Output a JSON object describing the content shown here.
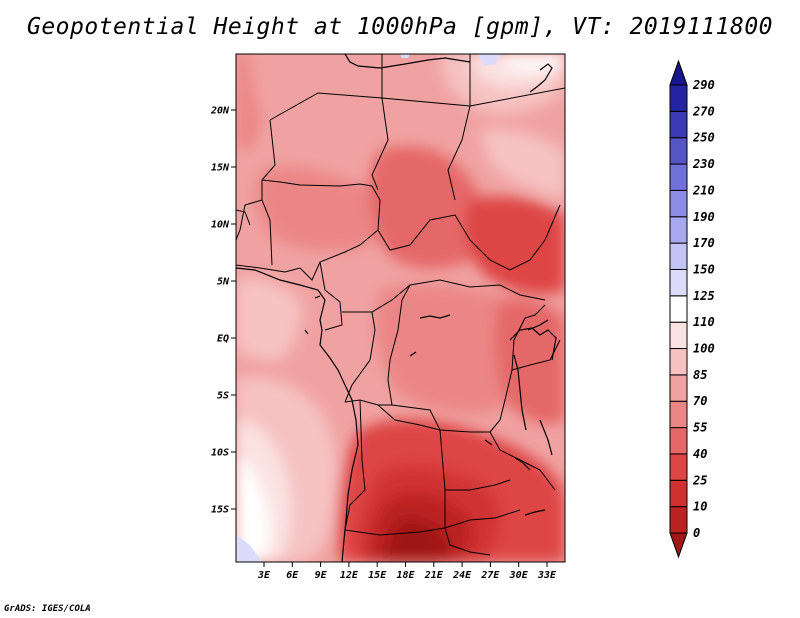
{
  "title": "Geopotential Height at 1000hPa [gpm], VT: 2019111800",
  "credit": "GrADS: IGES/COLA",
  "map": {
    "lat_ticks": [
      "20N",
      "15N",
      "10N",
      "5N",
      "EQ",
      "5S",
      "10S",
      "15S"
    ],
    "lon_ticks": [
      "3E",
      "6E",
      "9E",
      "12E",
      "15E",
      "18E",
      "21E",
      "24E",
      "27E",
      "30E",
      "33E"
    ]
  },
  "colorbar": {
    "levels": [
      "0",
      "10",
      "25",
      "40",
      "55",
      "70",
      "85",
      "100",
      "110",
      "125",
      "150",
      "170",
      "190",
      "210",
      "230",
      "250",
      "270",
      "290"
    ],
    "colors": [
      "#a01818",
      "#bb2222",
      "#d03030",
      "#de4545",
      "#e56868",
      "#eb8686",
      "#f0a2a2",
      "#f6c2c2",
      "#fbe2e2",
      "#ffffff",
      "#dcdcfa",
      "#c4c4f4",
      "#a8a8ee",
      "#8c8ce6",
      "#7070d8",
      "#5555c6",
      "#3a3ab4",
      "#2424a0",
      "#16168a"
    ]
  }
}
